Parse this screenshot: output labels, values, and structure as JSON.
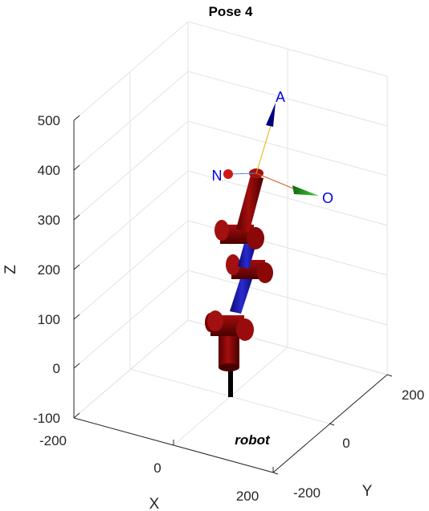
{
  "figure": {
    "title": "Pose 4",
    "robot_name": "robot",
    "axes": {
      "x_label": "X",
      "y_label": "Y",
      "z_label": "Z",
      "x_ticks": [
        "-200",
        "0",
        "200"
      ],
      "y_ticks": [
        "-200",
        "0",
        "200"
      ],
      "z_ticks": [
        "500",
        "400",
        "300",
        "200",
        "100",
        "0",
        "-100"
      ]
    },
    "frame_labels": {
      "n": "N",
      "o": "O",
      "a": "A"
    },
    "colors": {
      "link": "#8b0000",
      "joint_shaft": "#1616b0",
      "base": "#000000",
      "frame_label": "#0000e6",
      "n_arrow": "#d32020",
      "o_arrow": "#1a9a1a",
      "a_arrow": "#000080"
    }
  }
}
